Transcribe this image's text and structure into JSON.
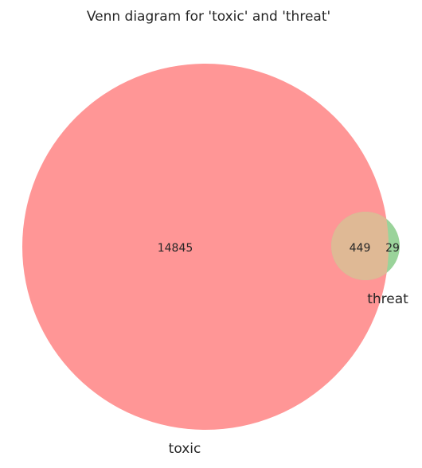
{
  "title": "Venn diagram for 'toxic' and 'threat'",
  "sets": {
    "toxic": {
      "label": "toxic",
      "color": "#ff9696"
    },
    "threat": {
      "label": "threat",
      "color": "#9ad39a"
    },
    "overlap_color": "#dfb995"
  },
  "regions": {
    "toxic_only": "14845",
    "both": "449",
    "threat_only": "29"
  }
}
